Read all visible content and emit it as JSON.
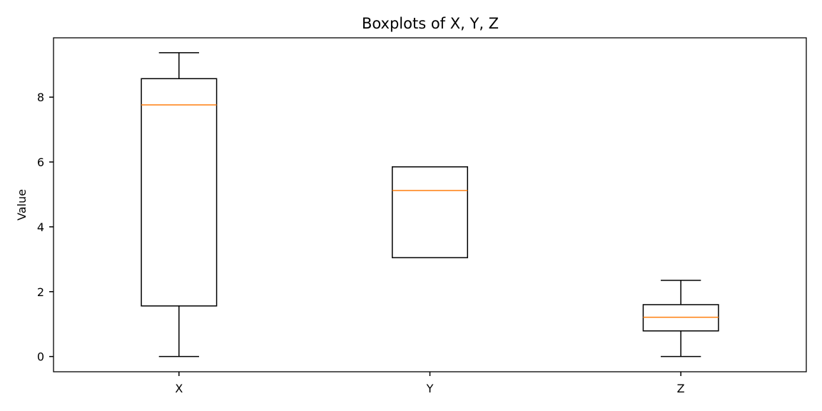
{
  "chart_data": {
    "type": "box",
    "title": "Boxplots of X, Y, Z",
    "xlabel": "",
    "ylabel": "Value",
    "ylim": [
      -0.47,
      9.83
    ],
    "yticks": [
      0,
      2,
      4,
      6,
      8
    ],
    "grid": false,
    "colors": {
      "box": "#000000",
      "median": "#ff7f0e",
      "background": "#ffffff"
    },
    "boxes": [
      {
        "category": "X",
        "whisker_low": 0.0,
        "q1": 1.56,
        "median": 7.76,
        "q3": 8.57,
        "whisker_high": 9.37
      },
      {
        "category": "Y",
        "whisker_low": 3.05,
        "q1": 3.05,
        "median": 5.12,
        "q3": 5.85,
        "whisker_high": 5.85
      },
      {
        "category": "Z",
        "whisker_low": 0.0,
        "q1": 0.79,
        "median": 1.21,
        "q3": 1.6,
        "whisker_high": 2.35
      }
    ]
  }
}
